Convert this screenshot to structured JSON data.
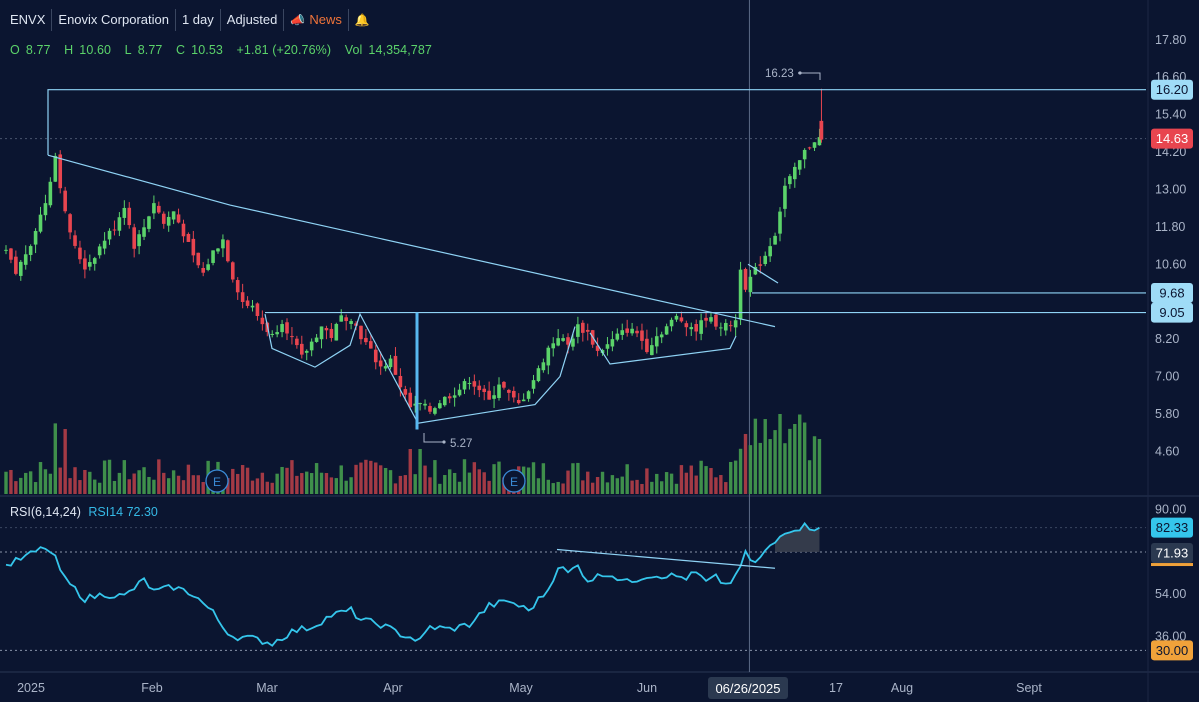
{
  "header": {
    "symbol": "ENVX",
    "company": "Enovix Corporation",
    "interval": "1 day",
    "adjustment": "Adjusted",
    "news_label": "News",
    "colors": {
      "news": "#f0743a",
      "up": "#5bd36a",
      "down": "#e8454f",
      "line": "#8fd3f5"
    }
  },
  "ohlc": {
    "open_label": "O",
    "open": "8.77",
    "high_label": "H",
    "high": "10.60",
    "low_label": "L",
    "low": "8.77",
    "close_label": "C",
    "close": "10.53",
    "change": "+1.81 (+20.76%)",
    "volume_label": "Vol",
    "volume": "14,354,787"
  },
  "rsi_header": {
    "label": "RSI(6,14,24)",
    "value_label": "RSI14 72.30"
  },
  "chart_data": {
    "type": "candlestick",
    "price_axis": {
      "ticks": [
        "17.80",
        "16.60",
        "15.40",
        "14.20",
        "13.00",
        "11.80",
        "10.60",
        "8.20",
        "7.00",
        "5.80",
        "4.60"
      ],
      "ylim": [
        4.0,
        18.5
      ]
    },
    "rsi_axis": {
      "ticks": [
        "90.00",
        "54.00",
        "36.00"
      ],
      "ylim": [
        28,
        92
      ]
    },
    "x_axis": {
      "ticks": [
        "2025",
        "Feb",
        "Mar",
        "Apr",
        "May",
        "Jun",
        "17",
        "Aug",
        "Sept"
      ],
      "crosshair_label": "06/26/2025"
    },
    "price_badges": [
      {
        "text": "16.20",
        "value": 16.2,
        "bg": "#9fdcf7",
        "fg": "#0b1530"
      },
      {
        "text": "14.63",
        "value": 14.63,
        "bg": "#e8454f",
        "fg": "#ffffff"
      },
      {
        "text": "9.68",
        "value": 9.68,
        "bg": "#9fdcf7",
        "fg": "#0b1530"
      },
      {
        "text": "9.05",
        "value": 9.05,
        "bg": "#9fdcf7",
        "fg": "#0b1530"
      }
    ],
    "rsi_badges": [
      {
        "text": "82.33",
        "value": 82.33,
        "bg": "#35c6ec",
        "fg": "#0b1530"
      },
      {
        "text": "71.93",
        "value": 71.93,
        "bg": "#2b3950",
        "fg": "#ffffff"
      },
      {
        "text": "30.00",
        "value": 30.0,
        "bg": "#f0a23a",
        "fg": "#0b1530"
      }
    ],
    "annotations": {
      "high_label": "16.23",
      "low_label": "5.27"
    },
    "earnings_marker": "E",
    "pattern_levels": [
      16.2,
      9.68,
      9.05
    ],
    "price_anchors": [
      [
        0,
        11.0
      ],
      [
        2,
        10.3
      ],
      [
        5,
        11.3
      ],
      [
        8,
        12.6
      ],
      [
        10,
        14.1
      ],
      [
        12,
        12.2
      ],
      [
        14,
        11.1
      ],
      [
        16,
        10.5
      ],
      [
        18,
        10.9
      ],
      [
        20,
        11.4
      ],
      [
        22,
        11.8
      ],
      [
        24,
        12.5
      ],
      [
        26,
        11.2
      ],
      [
        28,
        11.8
      ],
      [
        30,
        12.6
      ],
      [
        32,
        11.9
      ],
      [
        34,
        12.3
      ],
      [
        36,
        11.6
      ],
      [
        38,
        10.8
      ],
      [
        40,
        10.3
      ],
      [
        42,
        11.0
      ],
      [
        44,
        11.4
      ],
      [
        46,
        10.2
      ],
      [
        48,
        9.4
      ],
      [
        50,
        9.2
      ],
      [
        52,
        8.7
      ],
      [
        54,
        8.3
      ],
      [
        56,
        8.8
      ],
      [
        58,
        8.2
      ],
      [
        60,
        7.6
      ],
      [
        62,
        8.1
      ],
      [
        64,
        8.6
      ],
      [
        66,
        8.3
      ],
      [
        68,
        8.9
      ],
      [
        70,
        8.9
      ],
      [
        72,
        8.3
      ],
      [
        74,
        7.8
      ],
      [
        76,
        7.3
      ],
      [
        78,
        7.5
      ],
      [
        80,
        6.7
      ],
      [
        82,
        6.0
      ],
      [
        84,
        6.1
      ],
      [
        86,
        5.9
      ],
      [
        88,
        6.2
      ],
      [
        90,
        6.4
      ],
      [
        92,
        6.6
      ],
      [
        94,
        6.9
      ],
      [
        96,
        6.6
      ],
      [
        98,
        6.2
      ],
      [
        100,
        6.8
      ],
      [
        102,
        6.4
      ],
      [
        104,
        6.1
      ],
      [
        106,
        6.6
      ],
      [
        108,
        7.2
      ],
      [
        110,
        7.9
      ],
      [
        112,
        8.3
      ],
      [
        114,
        8.0
      ],
      [
        116,
        8.6
      ],
      [
        118,
        8.4
      ],
      [
        120,
        7.8
      ],
      [
        122,
        8.0
      ],
      [
        124,
        8.3
      ],
      [
        126,
        8.5
      ],
      [
        128,
        8.4
      ],
      [
        130,
        7.9
      ],
      [
        132,
        8.3
      ],
      [
        134,
        8.6
      ],
      [
        136,
        8.9
      ],
      [
        138,
        8.7
      ],
      [
        140,
        8.5
      ],
      [
        142,
        8.9
      ],
      [
        144,
        8.7
      ],
      [
        146,
        8.6
      ],
      [
        148,
        8.8
      ],
      [
        149,
        10.53
      ],
      [
        150,
        9.9
      ],
      [
        152,
        10.4
      ],
      [
        154,
        10.9
      ],
      [
        156,
        11.6
      ],
      [
        158,
        13.1
      ],
      [
        160,
        13.6
      ],
      [
        162,
        14.2
      ],
      [
        164,
        14.6
      ],
      [
        165,
        14.63
      ]
    ],
    "rsi_anchors": [
      [
        0,
        66
      ],
      [
        4,
        70
      ],
      [
        8,
        74
      ],
      [
        10,
        69
      ],
      [
        12,
        60
      ],
      [
        16,
        52
      ],
      [
        20,
        54
      ],
      [
        24,
        53
      ],
      [
        28,
        60
      ],
      [
        30,
        55
      ],
      [
        34,
        57
      ],
      [
        38,
        54
      ],
      [
        42,
        46
      ],
      [
        44,
        40
      ],
      [
        46,
        36
      ],
      [
        50,
        35
      ],
      [
        54,
        33
      ],
      [
        58,
        38
      ],
      [
        62,
        40
      ],
      [
        66,
        45
      ],
      [
        70,
        47
      ],
      [
        72,
        43
      ],
      [
        76,
        41
      ],
      [
        80,
        37
      ],
      [
        84,
        34
      ],
      [
        86,
        40
      ],
      [
        90,
        39
      ],
      [
        94,
        41
      ],
      [
        98,
        49
      ],
      [
        102,
        51
      ],
      [
        106,
        47
      ],
      [
        110,
        56
      ],
      [
        112,
        66
      ],
      [
        114,
        63
      ],
      [
        116,
        66
      ],
      [
        118,
        60
      ],
      [
        122,
        63
      ],
      [
        126,
        59
      ],
      [
        130,
        62
      ],
      [
        134,
        62
      ],
      [
        138,
        61
      ],
      [
        140,
        63
      ],
      [
        142,
        59
      ],
      [
        144,
        61
      ],
      [
        146,
        58
      ],
      [
        148,
        61
      ],
      [
        150,
        71
      ],
      [
        152,
        67
      ],
      [
        154,
        72
      ],
      [
        156,
        76
      ],
      [
        158,
        81
      ],
      [
        160,
        82
      ],
      [
        162,
        83
      ],
      [
        164,
        82.3
      ],
      [
        165,
        82.33
      ]
    ]
  }
}
